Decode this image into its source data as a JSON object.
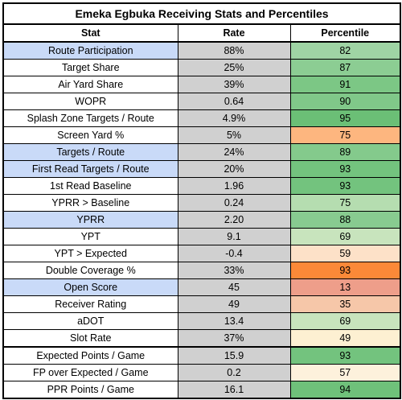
{
  "title": "Emeka Egbuka Receiving Stats and Percentiles",
  "headers": {
    "stat": "Stat",
    "rate": "Rate",
    "percentile": "Percentile"
  },
  "rows": [
    {
      "stat": "Route Participation",
      "rate": "88%",
      "percentile": "82",
      "highlight": true,
      "color": "#9fd4a4"
    },
    {
      "stat": "Target Share",
      "rate": "25%",
      "percentile": "87",
      "highlight": false,
      "color": "#8ccd93"
    },
    {
      "stat": "Air Yard Share",
      "rate": "39%",
      "percentile": "91",
      "highlight": false,
      "color": "#7cc785"
    },
    {
      "stat": "WOPR",
      "rate": "0.64",
      "percentile": "90",
      "highlight": false,
      "color": "#80c889"
    },
    {
      "stat": "Splash Zone Targets / Route",
      "rate": "4.9%",
      "percentile": "95",
      "highlight": false,
      "color": "#6bbf76"
    },
    {
      "stat": "Screen Yard %",
      "rate": "5%",
      "percentile": "75",
      "highlight": false,
      "color": "#fdb67f"
    },
    {
      "stat": "Targets / Route",
      "rate": "24%",
      "percentile": "89",
      "highlight": true,
      "color": "#84ca8c"
    },
    {
      "stat": "First Read Targets / Route",
      "rate": "20%",
      "percentile": "93",
      "highlight": true,
      "color": "#73c37e"
    },
    {
      "stat": "1st Read Baseline",
      "rate": "1.96",
      "percentile": "93",
      "highlight": false,
      "color": "#73c37e"
    },
    {
      "stat": "YPRR > Baseline",
      "rate": "0.24",
      "percentile": "75",
      "highlight": false,
      "color": "#b5ddb0"
    },
    {
      "stat": "YPRR",
      "rate": "2.20",
      "percentile": "88",
      "highlight": true,
      "color": "#88cb90"
    },
    {
      "stat": "YPT",
      "rate": "9.1",
      "percentile": "69",
      "highlight": false,
      "color": "#c8e4bd"
    },
    {
      "stat": "YPT > Expected",
      "rate": "-0.4",
      "percentile": "59",
      "highlight": false,
      "color": "#fde1c8"
    },
    {
      "stat": "Double Coverage %",
      "rate": "33%",
      "percentile": "93",
      "highlight": false,
      "color": "#fb8938"
    },
    {
      "stat": "Open Score",
      "rate": "45",
      "percentile": "13",
      "highlight": true,
      "color": "#ee9e8a"
    },
    {
      "stat": "Receiver Rating",
      "rate": "49",
      "percentile": "35",
      "highlight": false,
      "color": "#f6c7a9"
    },
    {
      "stat": "aDOT",
      "rate": "13.4",
      "percentile": "69",
      "highlight": false,
      "color": "#c8e4bd"
    },
    {
      "stat": "Slot Rate",
      "rate": "37%",
      "percentile": "49",
      "highlight": false,
      "color": "#fdf0d2"
    },
    {
      "stat": "Expected Points / Game",
      "rate": "15.9",
      "percentile": "93",
      "highlight": false,
      "color": "#73c37e"
    },
    {
      "stat": "FP over Expected / Game",
      "rate": "0.2",
      "percentile": "57",
      "highlight": false,
      "color": "#fdf1dc"
    },
    {
      "stat": "PPR Points / Game",
      "rate": "16.1",
      "percentile": "94",
      "highlight": false,
      "color": "#6fc17a"
    }
  ]
}
